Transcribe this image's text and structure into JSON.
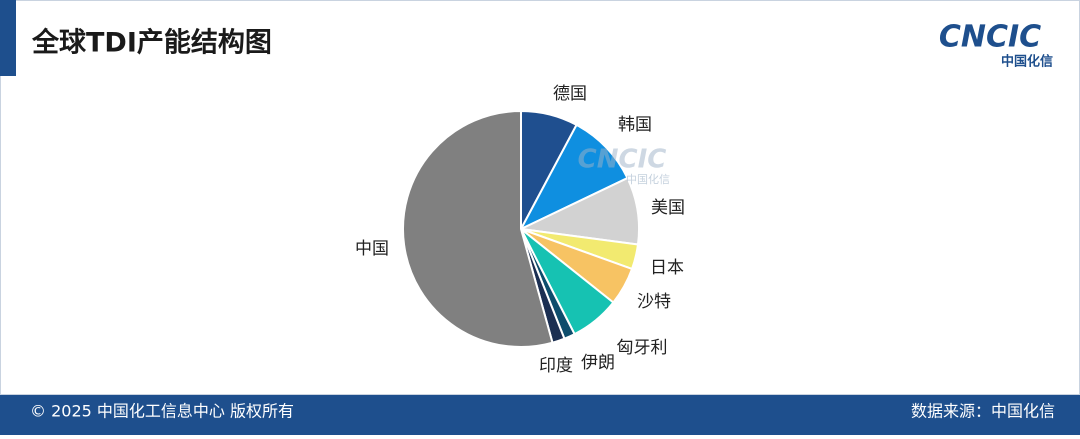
{
  "header": {
    "title": "全球TDI产能结构图",
    "logo": "CNCIC",
    "logo_subtitle": "中国化信"
  },
  "chart_data": {
    "type": "pie",
    "categories": [
      "德国",
      "韩国",
      "美国",
      "日本",
      "沙特",
      "匈牙利",
      "伊朗",
      "印度",
      "中国"
    ],
    "values": [
      7.8,
      10.1,
      9.2,
      3.4,
      5.2,
      6.8,
      1.5,
      1.7,
      54.3
    ],
    "colors": [
      "#1f4f8f",
      "#0f8fe0",
      "#d2d2d2",
      "#f2ea70",
      "#f7c363",
      "#16c2b2",
      "#0e4d6c",
      "#1b2f52",
      "#808080"
    ]
  },
  "footer": {
    "copyright": "© 2025 中国化工信息中心 版权所有",
    "source": "数据来源：中国化信"
  }
}
